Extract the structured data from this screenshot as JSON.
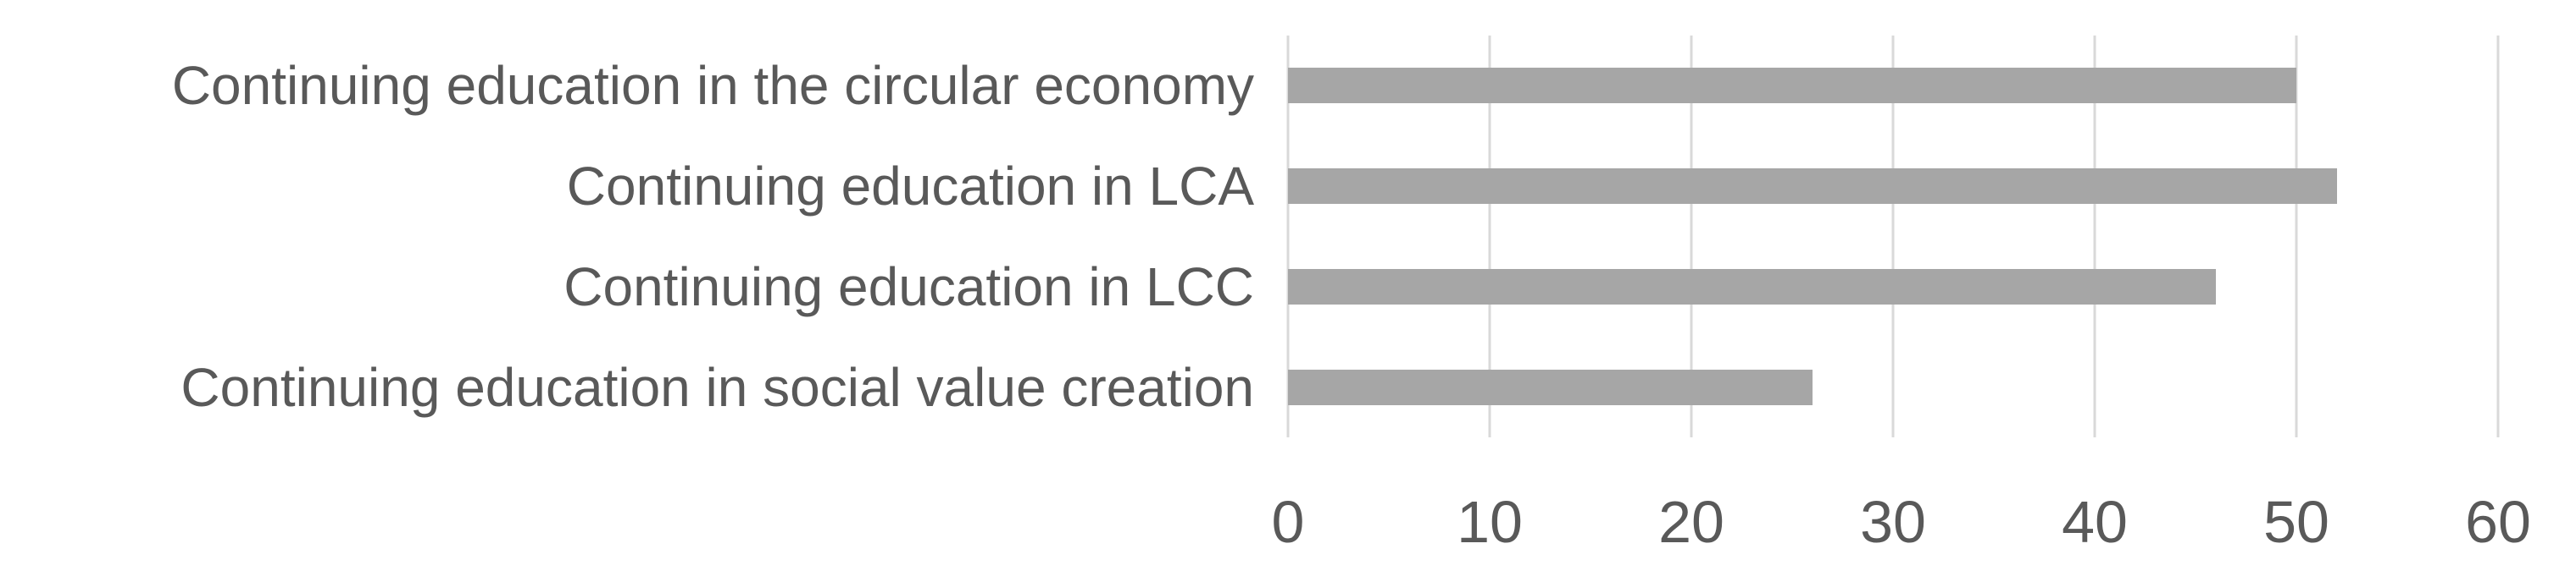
{
  "chart_data": {
    "type": "bar",
    "orientation": "horizontal",
    "title": "",
    "xlabel": "",
    "ylabel": "",
    "categories": [
      "Continuing education in the circular economy",
      "Continuing education in LCA",
      "Continuing education in LCC",
      "Continuing education in social value creation"
    ],
    "values": [
      50,
      52,
      46,
      26
    ],
    "xlim": [
      0,
      60
    ],
    "xticks": [
      "0",
      "10",
      "20",
      "30",
      "40",
      "50",
      "60"
    ],
    "grid": "vertical-on",
    "legend": "none",
    "colors": {
      "bar": "#a6a6a6",
      "gridline": "#d9d9d9",
      "text": "#595959",
      "background": "#ffffff"
    }
  }
}
